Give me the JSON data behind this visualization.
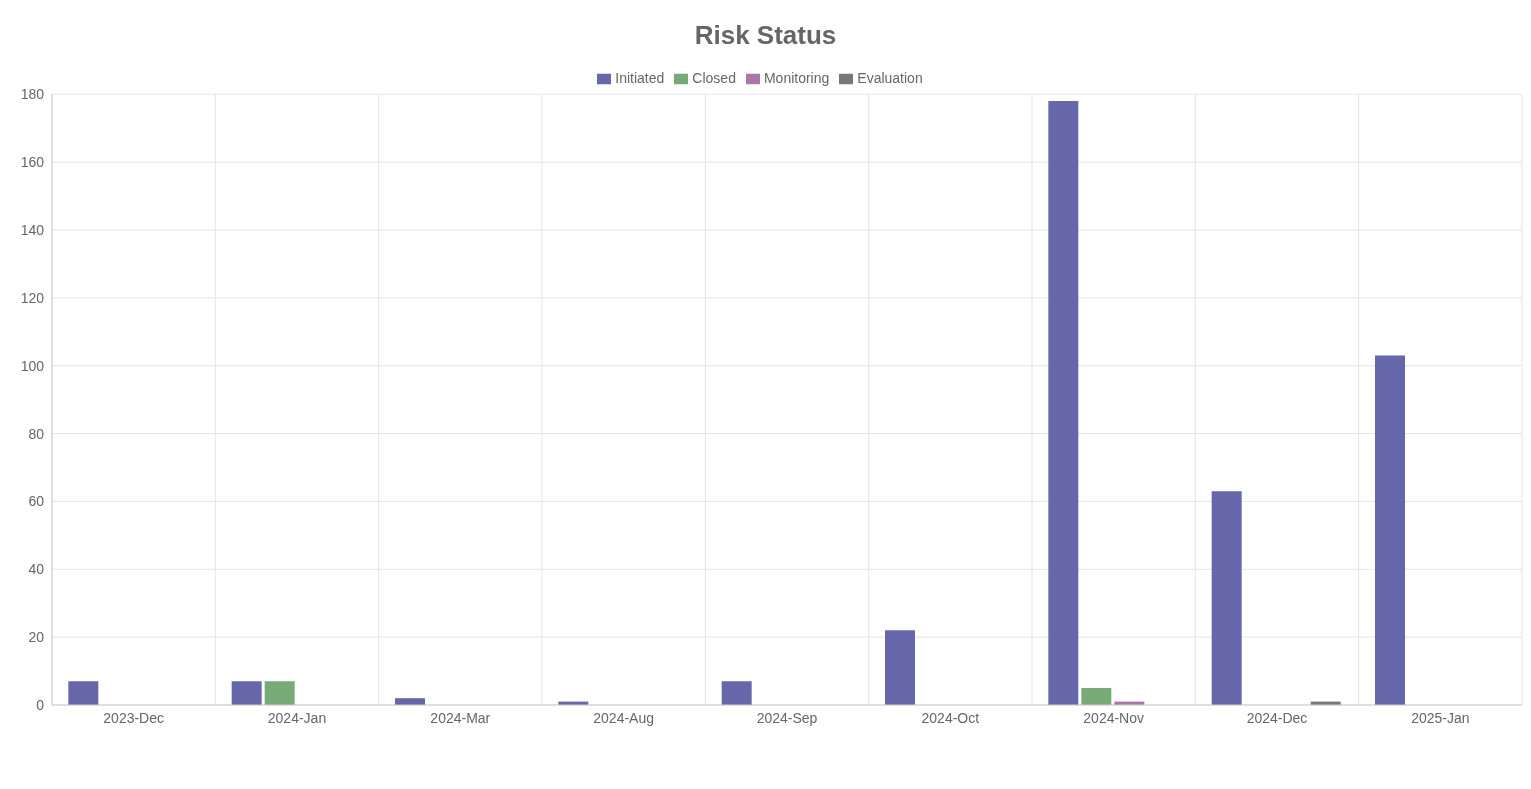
{
  "chart_data": {
    "type": "bar",
    "title": "Risk Status",
    "categories": [
      "2023-Dec",
      "2024-Jan",
      "2024-Mar",
      "2024-Aug",
      "2024-Sep",
      "2024-Oct",
      "2024-Nov",
      "2024-Dec",
      "2025-Jan"
    ],
    "series": [
      {
        "name": "Initiated",
        "color": "#6667ab",
        "values": [
          7,
          7,
          2,
          1,
          7,
          22,
          178,
          63,
          103
        ]
      },
      {
        "name": "Closed",
        "color": "#77aa77",
        "values": [
          0,
          7,
          0,
          0,
          0,
          0,
          5,
          0,
          0
        ]
      },
      {
        "name": "Monitoring",
        "color": "#aa77aa",
        "values": [
          0,
          0,
          0,
          0,
          0,
          0,
          1,
          0,
          0
        ]
      },
      {
        "name": "Evaluation",
        "color": "#777777",
        "values": [
          0,
          0,
          0,
          0,
          0,
          0,
          0,
          1,
          0
        ]
      }
    ],
    "ylim": [
      0,
      180
    ],
    "yticks": [
      0,
      20,
      40,
      60,
      80,
      100,
      120,
      140,
      160,
      180
    ],
    "grid": true,
    "legend": "top"
  }
}
